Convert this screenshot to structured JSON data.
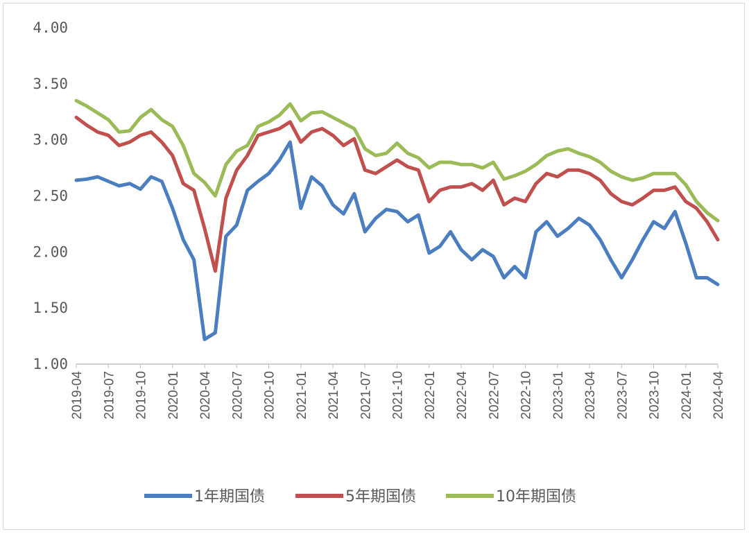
{
  "chart_data": {
    "type": "line",
    "title": "",
    "xlabel": "",
    "ylabel": "",
    "ylim": [
      1.0,
      4.0
    ],
    "yticks": [
      "1.00",
      "1.50",
      "2.00",
      "2.50",
      "3.00",
      "3.50",
      "4.00"
    ],
    "xticks": [
      "2019-04",
      "2019-07",
      "2019-10",
      "2020-01",
      "2020-04",
      "2020-07",
      "2020-10",
      "2021-01",
      "2021-04",
      "2021-07",
      "2021-10",
      "2022-01",
      "2022-04",
      "2022-07",
      "2022-10",
      "2023-01",
      "2023-04",
      "2023-07",
      "2023-10",
      "2024-01",
      "2024-04"
    ],
    "x_range": [
      "2019-04",
      "2024-04"
    ],
    "grid": false,
    "legend": "bottom",
    "series": [
      {
        "name": "1年期国债",
        "color": "#4a7ebf",
        "values": [
          2.64,
          2.65,
          2.67,
          2.63,
          2.59,
          2.61,
          2.56,
          2.67,
          2.63,
          2.39,
          2.11,
          1.93,
          1.22,
          1.28,
          2.14,
          2.24,
          2.55,
          2.63,
          2.7,
          2.82,
          2.98,
          2.39,
          2.67,
          2.59,
          2.42,
          2.34,
          2.52,
          2.18,
          2.3,
          2.38,
          2.36,
          2.27,
          2.33,
          1.99,
          2.05,
          2.18,
          2.02,
          1.93,
          2.02,
          1.96,
          1.77,
          1.87,
          1.77,
          2.18,
          2.27,
          2.14,
          2.21,
          2.3,
          2.24,
          2.11,
          1.93,
          1.77,
          1.93,
          2.11,
          2.27,
          2.21,
          2.36,
          2.08,
          1.77,
          1.77,
          1.71
        ]
      },
      {
        "name": "5年期国债",
        "color": "#c0504d",
        "values": [
          3.2,
          3.13,
          3.07,
          3.04,
          2.95,
          2.98,
          3.04,
          3.07,
          2.98,
          2.86,
          2.61,
          2.55,
          2.21,
          1.83,
          2.48,
          2.73,
          2.86,
          3.04,
          3.07,
          3.1,
          3.16,
          2.98,
          3.07,
          3.1,
          3.04,
          2.95,
          3.01,
          2.73,
          2.7,
          2.76,
          2.82,
          2.76,
          2.73,
          2.45,
          2.55,
          2.58,
          2.58,
          2.61,
          2.55,
          2.64,
          2.42,
          2.48,
          2.45,
          2.61,
          2.7,
          2.67,
          2.73,
          2.73,
          2.7,
          2.64,
          2.52,
          2.45,
          2.42,
          2.48,
          2.55,
          2.55,
          2.58,
          2.45,
          2.39,
          2.27,
          2.11
        ]
      },
      {
        "name": "10年期国债",
        "color": "#9bbb59",
        "values": [
          3.35,
          3.3,
          3.24,
          3.18,
          3.07,
          3.08,
          3.2,
          3.27,
          3.18,
          3.12,
          2.95,
          2.7,
          2.62,
          2.5,
          2.78,
          2.9,
          2.95,
          3.12,
          3.16,
          3.22,
          3.32,
          3.17,
          3.24,
          3.25,
          3.2,
          3.15,
          3.1,
          2.92,
          2.86,
          2.88,
          2.97,
          2.88,
          2.84,
          2.75,
          2.8,
          2.8,
          2.78,
          2.78,
          2.75,
          2.8,
          2.65,
          2.68,
          2.72,
          2.78,
          2.86,
          2.9,
          2.92,
          2.88,
          2.85,
          2.8,
          2.72,
          2.67,
          2.64,
          2.66,
          2.7,
          2.7,
          2.7,
          2.6,
          2.45,
          2.35,
          2.28
        ]
      }
    ]
  }
}
